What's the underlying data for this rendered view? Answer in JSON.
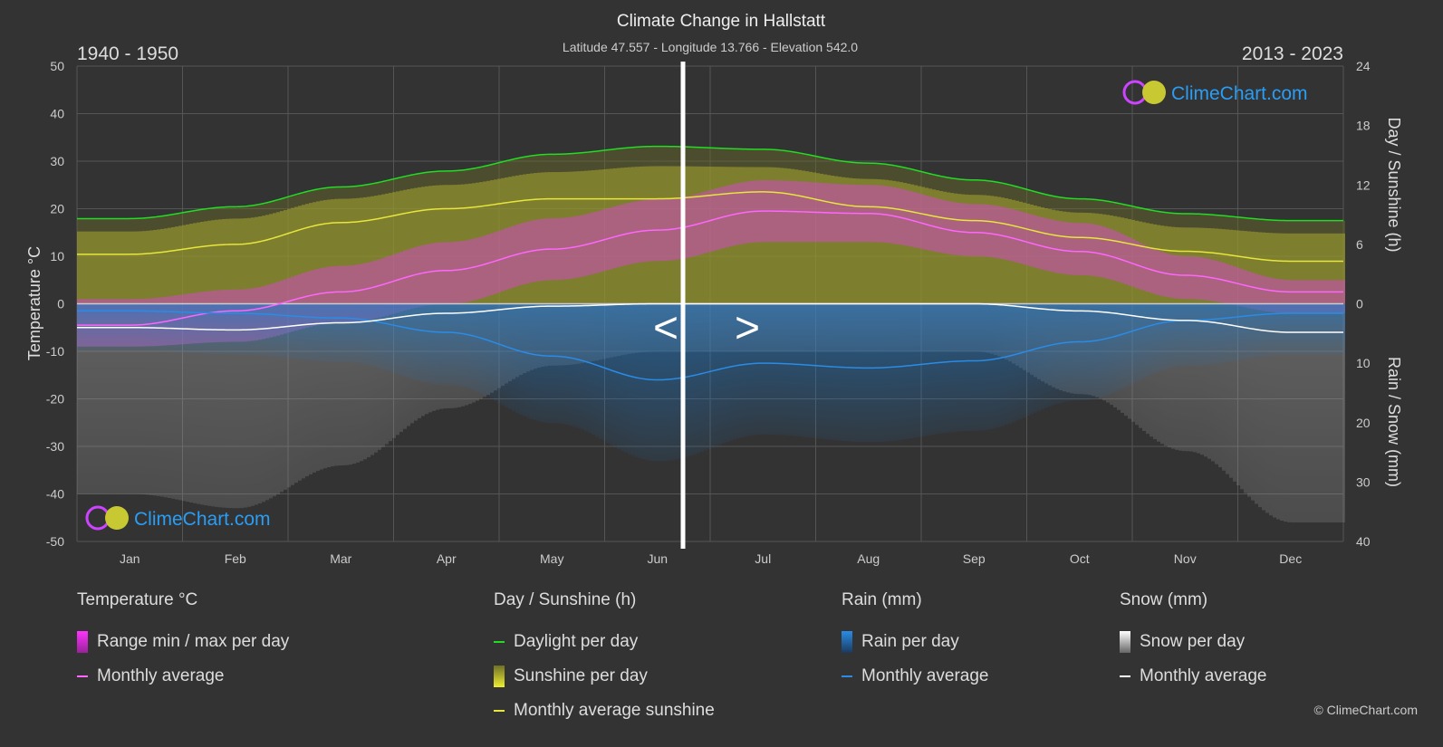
{
  "chart_data": {
    "type": "line",
    "title": "Climate Change in Hallstatt",
    "subtitle": "Latitude 47.557 - Longitude 13.766 - Elevation 542.0",
    "period_left": "1940 - 1950",
    "period_right": "2013 - 2023",
    "categories": [
      "Jan",
      "Feb",
      "Mar",
      "Apr",
      "May",
      "Jun",
      "Jul",
      "Aug",
      "Sep",
      "Oct",
      "Nov",
      "Dec"
    ],
    "split_after_month": "Jun",
    "y_left": {
      "label": "Temperature °C",
      "range": [
        -50,
        50
      ],
      "ticks": [
        50,
        40,
        30,
        20,
        10,
        0,
        -10,
        -20,
        -30,
        -40,
        -50
      ]
    },
    "y_right_top": {
      "label": "Day / Sunshine (h)",
      "range": [
        0,
        24
      ],
      "ticks": [
        24,
        18,
        12,
        6,
        0
      ]
    },
    "y_right_bottom": {
      "label": "Rain / Snow (mm)",
      "range": [
        0,
        40
      ],
      "ticks": [
        0,
        10,
        20,
        30,
        40
      ]
    },
    "grid": true,
    "series": [
      {
        "name": "Range min / max per day",
        "kind": "band",
        "color": "#e040e0",
        "min": [
          -9,
          -8,
          -4,
          0,
          5,
          9,
          13,
          13,
          10,
          6,
          1,
          -2
        ],
        "max": [
          1,
          3,
          8,
          13,
          18,
          22,
          26,
          25,
          21,
          17,
          10,
          5
        ]
      },
      {
        "name": "Monthly average",
        "group": "temperature",
        "color": "#ff66ff",
        "values": [
          -4.5,
          -1.5,
          2.5,
          7,
          11.5,
          15.5,
          19.5,
          19,
          15,
          11,
          6,
          2.5
        ]
      },
      {
        "name": "Daylight per day",
        "color": "#22dd22",
        "values": [
          8.6,
          9.8,
          11.8,
          13.4,
          15.1,
          15.9,
          15.6,
          14.2,
          12.5,
          10.6,
          9.1,
          8.4
        ]
      },
      {
        "name": "Sunshine per day",
        "kind": "bars",
        "color": "#c8c832",
        "values": [
          7.3,
          8.6,
          10.6,
          12,
          13.3,
          13.9,
          13.8,
          12.6,
          11,
          9.2,
          7.7,
          7.1
        ]
      },
      {
        "name": "Monthly average sunshine",
        "color": "#e6e63c",
        "values": [
          5.0,
          6.0,
          8.2,
          9.6,
          10.6,
          10.6,
          11.3,
          9.8,
          8.4,
          6.7,
          5.3,
          4.3
        ]
      },
      {
        "name": "Rain per day",
        "kind": "bars",
        "color": "#1e78c8",
        "values": [
          1.2,
          1.6,
          2.4,
          4.8,
          8.8,
          12.8,
          10,
          10.8,
          9.6,
          6.4,
          2.8,
          1.6
        ]
      },
      {
        "name": "Monthly average",
        "group": "rain",
        "color": "#2a8ce6",
        "values": [
          1.2,
          1.6,
          2.4,
          4.8,
          8.8,
          12.8,
          10,
          10.8,
          9.6,
          6.4,
          2.8,
          1.6
        ]
      },
      {
        "name": "Snow per day",
        "kind": "bars",
        "color": "#bbbbbb",
        "values": [
          4,
          4.4,
          3.2,
          1.6,
          0.4,
          0,
          0,
          0,
          0,
          1.2,
          2.8,
          4.8
        ]
      },
      {
        "name": "Monthly average",
        "group": "snow",
        "color": "#ffffff",
        "values": [
          4,
          4.4,
          3.2,
          1.6,
          0.4,
          0,
          0,
          0,
          0,
          1.2,
          2.8,
          4.8
        ]
      }
    ]
  },
  "legend": {
    "temperature": {
      "title": "Temperature °C",
      "items": [
        "Range min / max per day",
        "Monthly average"
      ]
    },
    "sunshine": {
      "title": "Day / Sunshine (h)",
      "items": [
        "Daylight per day",
        "Sunshine per day",
        "Monthly average sunshine"
      ]
    },
    "rain": {
      "title": "Rain (mm)",
      "items": [
        "Rain per day",
        "Monthly average"
      ]
    },
    "snow": {
      "title": "Snow (mm)",
      "items": [
        "Snow per day",
        "Monthly average"
      ]
    }
  },
  "nav": {
    "prev": "<",
    "next": ">"
  },
  "logo_text": "ClimeChart.com",
  "copyright": "© ClimeChart.com"
}
